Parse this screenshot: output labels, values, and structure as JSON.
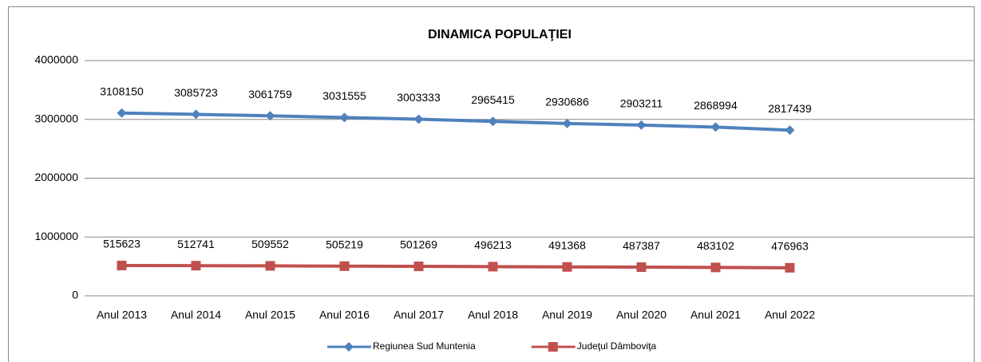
{
  "chart_data": {
    "type": "line",
    "title": "DINAMICA POPULAŢIEI",
    "categories": [
      "Anul 2013",
      "Anul 2014",
      "Anul 2015",
      "Anul 2016",
      "Anul 2017",
      "Anul 2018",
      "Anul 2019",
      "Anul 2020",
      "Anul 2021",
      "Anul 2022"
    ],
    "series": [
      {
        "name": "Regiunea Sud Muntenia",
        "color": "#4f81bd",
        "marker": "diamond",
        "values": [
          3108150,
          3085723,
          3061759,
          3031555,
          3003333,
          2965415,
          2930686,
          2903211,
          2868994,
          2817439
        ]
      },
      {
        "name": "Judeţul Dâmboviţa",
        "color": "#c0504d",
        "marker": "square",
        "values": [
          515623,
          512741,
          509552,
          505219,
          501269,
          496213,
          491368,
          487387,
          483102,
          476963
        ]
      }
    ],
    "ylim": [
      0,
      4000000
    ],
    "yticks": [
      0,
      1000000,
      2000000,
      3000000,
      4000000
    ],
    "grid": true,
    "legend": "bottom"
  }
}
